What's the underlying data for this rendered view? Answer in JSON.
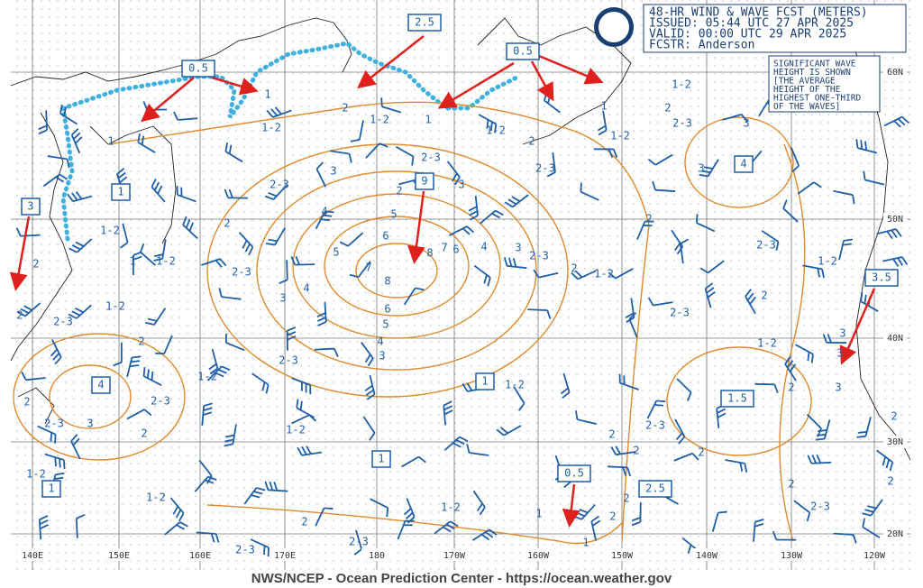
{
  "header": {
    "title": "48-HR WIND & WAVE FCST (METERS)",
    "issued": "ISSUED: 05:44 UTC 27 APR 2025",
    "valid": "VALID:  00:00 UTC 29 APR 2025",
    "forecaster": "FCSTR:  Anderson"
  },
  "note": {
    "lines": [
      "SIGNIFICANT WAVE",
      "HEIGHT IS SHOWN",
      "[THE AVERAGE",
      "HEIGHT OF THE",
      "HIGHEST ONE-THIRD",
      "OF THE WAVES]"
    ]
  },
  "footer": "NWS/NCEP - Ocean Prediction Center - https://ocean.weather.gov",
  "longitude_labels": [
    "140E",
    "150E",
    "160E",
    "170E",
    "180",
    "170W",
    "160W",
    "150W",
    "140W",
    "130W",
    "120W"
  ],
  "latitude_labels": [
    "60N",
    "50N",
    "40N",
    "30N",
    "20N"
  ],
  "boxed_labels": [
    "0.5",
    "2.5",
    "0.5",
    "3",
    "1",
    "9",
    "4",
    "4",
    "3.5",
    "1.5",
    "1",
    "1",
    "0.5",
    "2.5",
    "1"
  ],
  "contour_labels": [
    "1",
    "1-2",
    "2",
    "2",
    "2-3",
    "1-2",
    "2",
    "1-2",
    "1",
    "2",
    "2-3",
    "3",
    "4",
    "2-3",
    "3",
    "4",
    "5",
    "6",
    "7",
    "8",
    "8",
    "7",
    "6",
    "5",
    "4",
    "3",
    "2-3",
    "6",
    "5",
    "4",
    "3",
    "2-3",
    "1-2",
    "2-3",
    "2-3",
    "3",
    "2",
    "2",
    "1-2",
    "1-2",
    "1-2",
    "2-3",
    "2-3",
    "2",
    "1-2",
    "1-2",
    "1",
    "1-2",
    "2",
    "1",
    "1-2",
    "2-3",
    "3",
    "2",
    "1-2",
    "2",
    "2-3",
    "1",
    "1-2",
    "1-2",
    "2",
    "2-3",
    "3",
    "3",
    "2",
    "3",
    "2-3",
    "1-2",
    "2",
    "2-3",
    "1-2",
    "1-2",
    "2",
    "3",
    "3",
    "2",
    "3",
    "2",
    "2-3",
    "2",
    "2",
    "2",
    "2",
    "2-3",
    "2",
    "1",
    "1",
    "2",
    "2"
  ]
}
